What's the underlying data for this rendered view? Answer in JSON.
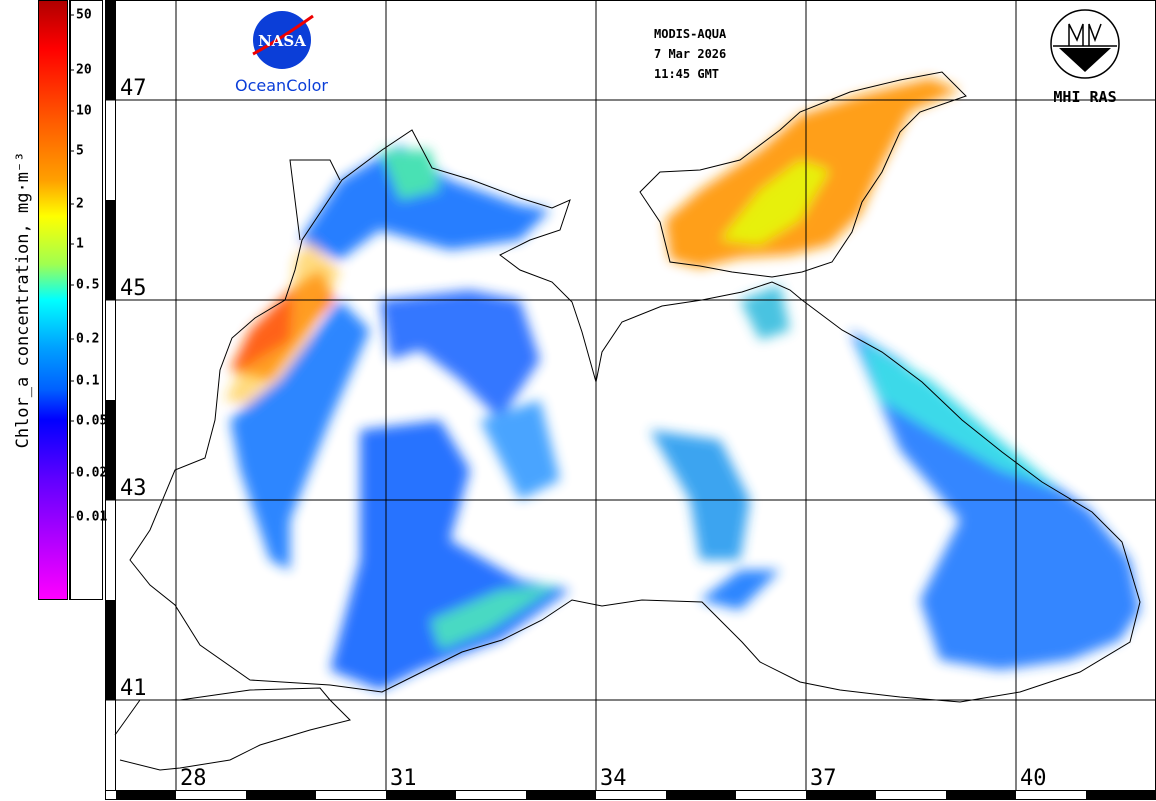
{
  "colorbar": {
    "title": "Chlor_a concentration, mg·m⁻³",
    "ticks": [
      "50",
      "20",
      "10",
      "5",
      "2",
      "1",
      "0.5",
      "0.2",
      "0.1",
      "0.05",
      "0.02",
      "0.01"
    ],
    "colors": {
      "high": "#b00000",
      "mid": "#00ffff",
      "low": "#ff00ff"
    }
  },
  "header": {
    "sensor": "MODIS-AQUA",
    "date": "7 Mar 2026",
    "time": "11:45 GMT"
  },
  "logos": {
    "nasa_text": "NASA",
    "nasa_caption": "OceanColor",
    "mhi_caption": "MHI RAS"
  },
  "axes": {
    "latitudes": [
      "47",
      "45",
      "43",
      "41"
    ],
    "longitudes": [
      "28",
      "31",
      "34",
      "37",
      "40"
    ]
  }
}
